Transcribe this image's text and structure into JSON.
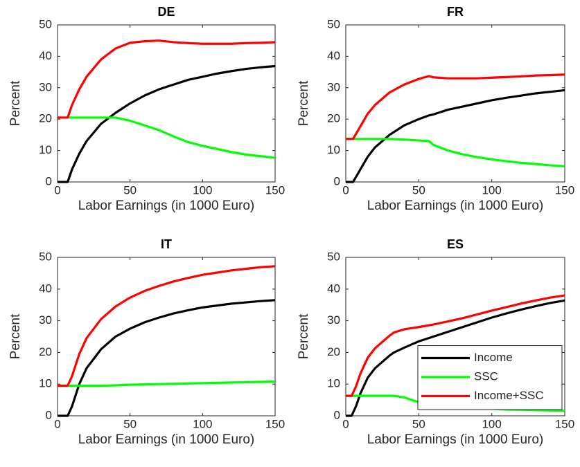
{
  "chart_data": [
    {
      "type": "line",
      "title": "DE",
      "xlabel": "Labor Earnings (in 1000 Euro)",
      "ylabel": "Percent",
      "x": [
        0,
        7,
        10,
        15,
        20,
        30,
        40,
        50,
        60,
        70,
        80,
        90,
        100,
        110,
        120,
        130,
        140,
        150
      ],
      "xlim": [
        0,
        150
      ],
      "xticks": [
        0,
        50,
        100,
        150
      ],
      "ylim": [
        0,
        50
      ],
      "yticks": [
        0,
        10,
        20,
        30,
        40,
        50
      ],
      "series": [
        {
          "color": "#000000",
          "values": [
            0,
            0,
            4,
            9,
            13,
            18.5,
            22,
            25,
            27.5,
            29.5,
            31,
            32.5,
            33.5,
            34.5,
            35.3,
            36,
            36.5,
            36.9
          ]
        },
        {
          "color": "#00ff00",
          "values": [
            20.5,
            20.5,
            20.5,
            20.5,
            20.5,
            20.5,
            20.5,
            19.5,
            18,
            16.5,
            14.5,
            12.7,
            11.5,
            10.5,
            9.5,
            8.7,
            8.2,
            7.7
          ]
        },
        {
          "color": "#ff0000",
          "values": [
            20.5,
            20.5,
            24.5,
            29.5,
            33.5,
            39,
            42.5,
            44.3,
            44.8,
            45,
            44.5,
            44.2,
            44,
            44,
            44,
            44.2,
            44.3,
            44.5
          ]
        }
      ]
    },
    {
      "type": "line",
      "title": "FR",
      "xlabel": "Labor Earnings (in 1000 Euro)",
      "ylabel": "Percent",
      "x": [
        0,
        5,
        10,
        15,
        20,
        30,
        40,
        50,
        57,
        60,
        70,
        80,
        90,
        100,
        110,
        120,
        130,
        140,
        150
      ],
      "xlim": [
        0,
        150
      ],
      "xticks": [
        0,
        50,
        100,
        150
      ],
      "ylim": [
        0,
        50
      ],
      "yticks": [
        0,
        10,
        20,
        30,
        40,
        50
      ],
      "series": [
        {
          "color": "#000000",
          "values": [
            0,
            0,
            4,
            8,
            11,
            15,
            18,
            20,
            21.2,
            21.5,
            23,
            24,
            25,
            26,
            26.8,
            27.5,
            28.2,
            28.7,
            29.2
          ]
        },
        {
          "color": "#00ff00",
          "values": [
            13.7,
            13.7,
            13.7,
            13.7,
            13.7,
            13.7,
            13.5,
            13.2,
            13,
            11.8,
            10,
            8.8,
            7.9,
            7.2,
            6.6,
            6.1,
            5.7,
            5.3,
            5
          ]
        },
        {
          "color": "#ff0000",
          "values": [
            13.7,
            13.7,
            17.7,
            21.7,
            24.5,
            28.5,
            31,
            32.8,
            33.7,
            33.3,
            33,
            33,
            33,
            33.2,
            33.4,
            33.6,
            33.9,
            34,
            34.2
          ]
        }
      ]
    },
    {
      "type": "line",
      "title": "IT",
      "xlabel": "Labor Earnings (in 1000 Euro)",
      "ylabel": "Percent",
      "x": [
        0,
        7,
        10,
        15,
        20,
        30,
        40,
        50,
        60,
        70,
        80,
        90,
        100,
        110,
        120,
        130,
        140,
        150
      ],
      "xlim": [
        0,
        150
      ],
      "xticks": [
        0,
        50,
        100,
        150
      ],
      "ylim": [
        0,
        50
      ],
      "yticks": [
        0,
        10,
        20,
        30,
        40,
        50
      ],
      "series": [
        {
          "color": "#000000",
          "values": [
            0,
            0,
            3,
            10,
            15,
            21,
            25,
            27.5,
            29.5,
            31,
            32.3,
            33.3,
            34.2,
            34.8,
            35.4,
            35.8,
            36.2,
            36.5
          ]
        },
        {
          "color": "#00ff00",
          "values": [
            9.5,
            9.5,
            9.5,
            9.5,
            9.5,
            9.5,
            9.6,
            9.8,
            9.9,
            10,
            10.1,
            10.2,
            10.3,
            10.4,
            10.5,
            10.6,
            10.7,
            10.8
          ]
        },
        {
          "color": "#ff0000",
          "values": [
            9.5,
            9.5,
            12.5,
            19.5,
            24.5,
            30.5,
            34.5,
            37.3,
            39.4,
            41,
            42.4,
            43.5,
            44.5,
            45.2,
            45.9,
            46.4,
            46.9,
            47.2
          ]
        }
      ]
    },
    {
      "type": "line",
      "title": "ES",
      "xlabel": "Labor Earnings (in 1000 Euro)",
      "ylabel": "Percent",
      "x": [
        0,
        4,
        7,
        10,
        15,
        20,
        30,
        33,
        40,
        50,
        60,
        70,
        80,
        90,
        100,
        110,
        120,
        130,
        140,
        150
      ],
      "xlim": [
        0,
        150
      ],
      "xticks": [
        0,
        50,
        100,
        150
      ],
      "ylim": [
        0,
        50
      ],
      "yticks": [
        0,
        10,
        20,
        30,
        40,
        50
      ],
      "legend": "lower right",
      "series": [
        {
          "name": "Income",
          "color": "#000000",
          "values": [
            0,
            0,
            3,
            7,
            12,
            15,
            19,
            20,
            21.5,
            23.5,
            25,
            26.5,
            28,
            29.5,
            31,
            32.3,
            33.5,
            34.6,
            35.6,
            36.4
          ]
        },
        {
          "name": "SSC",
          "color": "#00ff00",
          "values": [
            6.3,
            6.3,
            6.3,
            6.3,
            6.3,
            6.3,
            6.3,
            6.3,
            5.8,
            4.3,
            3.5,
            3,
            2.7,
            2.4,
            2.2,
            2,
            1.9,
            1.8,
            1.7,
            1.6
          ]
        },
        {
          "name": "Income+SSC",
          "color": "#ff0000",
          "values": [
            6.3,
            6.3,
            9.3,
            13.3,
            18.3,
            21.3,
            25.3,
            26.3,
            27.3,
            28,
            28.8,
            29.8,
            30.8,
            32,
            33.2,
            34.3,
            35.4,
            36.4,
            37.3,
            38
          ]
        }
      ]
    }
  ]
}
